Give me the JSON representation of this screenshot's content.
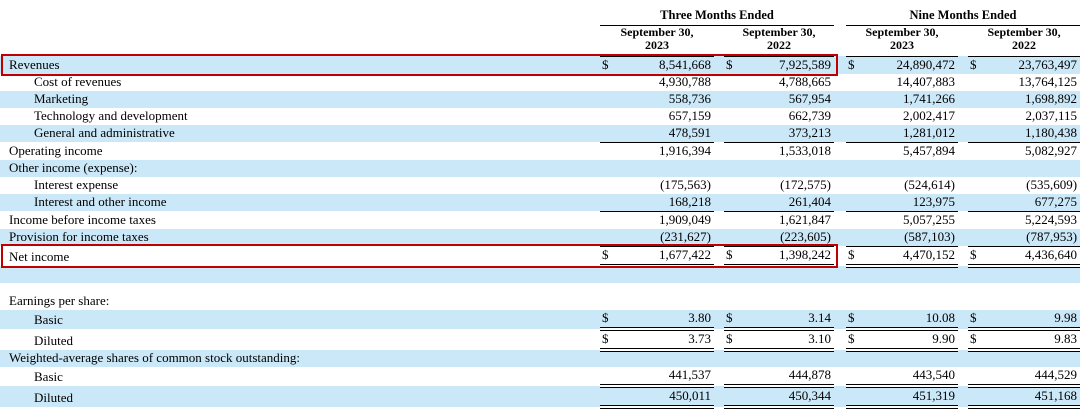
{
  "colors": {
    "row_shade": "#cbe8f8",
    "highlight_border": "#c00000"
  },
  "currency_symbol": "$",
  "header": {
    "groups": [
      {
        "label": "Three Months Ended"
      },
      {
        "label": "Nine Months Ended"
      }
    ],
    "columns": [
      "September 30,\n2023",
      "September 30,\n2022",
      "September 30,\n2023",
      "September 30,\n2022"
    ]
  },
  "rows": [
    {
      "label": "Revenues",
      "indent": false,
      "shaded": true,
      "sym": "$",
      "values": [
        "8,541,668",
        "7,925,589",
        "24,890,472",
        "23,763,497"
      ],
      "underline": "none",
      "highlighted": true
    },
    {
      "label": "Cost of revenues",
      "indent": true,
      "shaded": false,
      "sym": "",
      "values": [
        "4,930,788",
        "4,788,665",
        "14,407,883",
        "13,764,125"
      ],
      "underline": "none"
    },
    {
      "label": "Marketing",
      "indent": true,
      "shaded": true,
      "sym": "",
      "values": [
        "558,736",
        "567,954",
        "1,741,266",
        "1,698,892"
      ],
      "underline": "none"
    },
    {
      "label": "Technology and development",
      "indent": true,
      "shaded": false,
      "sym": "",
      "values": [
        "657,159",
        "662,739",
        "2,002,417",
        "2,037,115"
      ],
      "underline": "none"
    },
    {
      "label": "General and administrative",
      "indent": true,
      "shaded": true,
      "sym": "",
      "values": [
        "478,591",
        "373,213",
        "1,281,012",
        "1,180,438"
      ],
      "underline": "single"
    },
    {
      "label": "Operating income",
      "indent": false,
      "shaded": false,
      "sym": "",
      "values": [
        "1,916,394",
        "1,533,018",
        "5,457,894",
        "5,082,927"
      ],
      "underline": "none"
    },
    {
      "label": "Other income (expense):",
      "indent": false,
      "shaded": true,
      "sym": "",
      "values": [
        "",
        "",
        "",
        ""
      ],
      "underline": "none"
    },
    {
      "label": "Interest expense",
      "indent": true,
      "shaded": false,
      "sym": "",
      "values": [
        "(175,563)",
        "(172,575)",
        "(524,614)",
        "(535,609)"
      ],
      "underline": "none"
    },
    {
      "label": "Interest and other income",
      "indent": true,
      "shaded": true,
      "sym": "",
      "values": [
        "168,218",
        "261,404",
        "123,975",
        "677,275"
      ],
      "underline": "single"
    },
    {
      "label": "Income before income taxes",
      "indent": false,
      "shaded": false,
      "sym": "",
      "values": [
        "1,909,049",
        "1,621,847",
        "5,057,255",
        "5,224,593"
      ],
      "underline": "none"
    },
    {
      "label": "Provision for income taxes",
      "indent": false,
      "shaded": true,
      "sym": "",
      "values": [
        "(231,627)",
        "(223,605)",
        "(587,103)",
        "(787,953)"
      ],
      "underline": "single"
    },
    {
      "label": "Net income",
      "indent": false,
      "shaded": false,
      "sym": "$",
      "values": [
        "1,677,422",
        "1,398,242",
        "4,470,152",
        "4,436,640"
      ],
      "underline": "double",
      "highlighted": true
    },
    {
      "label": "",
      "blank": true,
      "indent": false,
      "shaded": true,
      "sym": "",
      "values": [
        "",
        "",
        "",
        ""
      ],
      "underline": "none"
    },
    {
      "label": "",
      "spacer": true,
      "indent": false,
      "shaded": false,
      "sym": "",
      "values": [
        "",
        "",
        "",
        ""
      ],
      "underline": "none"
    },
    {
      "label": "Earnings per share:",
      "indent": false,
      "shaded": false,
      "sym": "",
      "values": [
        "",
        "",
        "",
        ""
      ],
      "underline": "none"
    },
    {
      "label": "Basic",
      "indent": true,
      "shaded": true,
      "sym": "$",
      "values": [
        "3.80",
        "3.14",
        "10.08",
        "9.98"
      ],
      "underline": "double"
    },
    {
      "label": "Diluted",
      "indent": true,
      "shaded": false,
      "sym": "$",
      "values": [
        "3.73",
        "3.10",
        "9.90",
        "9.83"
      ],
      "underline": "double"
    },
    {
      "label": "Weighted-average shares of common stock outstanding:",
      "indent": false,
      "shaded": true,
      "sym": "",
      "values": [
        "",
        "",
        "",
        ""
      ],
      "underline": "none"
    },
    {
      "label": "Basic",
      "indent": true,
      "shaded": false,
      "sym": "",
      "values": [
        "441,537",
        "444,878",
        "443,540",
        "444,529"
      ],
      "underline": "double"
    },
    {
      "label": "Diluted",
      "indent": true,
      "shaded": true,
      "sym": "",
      "values": [
        "450,011",
        "450,344",
        "451,319",
        "451,168"
      ],
      "underline": "double"
    }
  ]
}
